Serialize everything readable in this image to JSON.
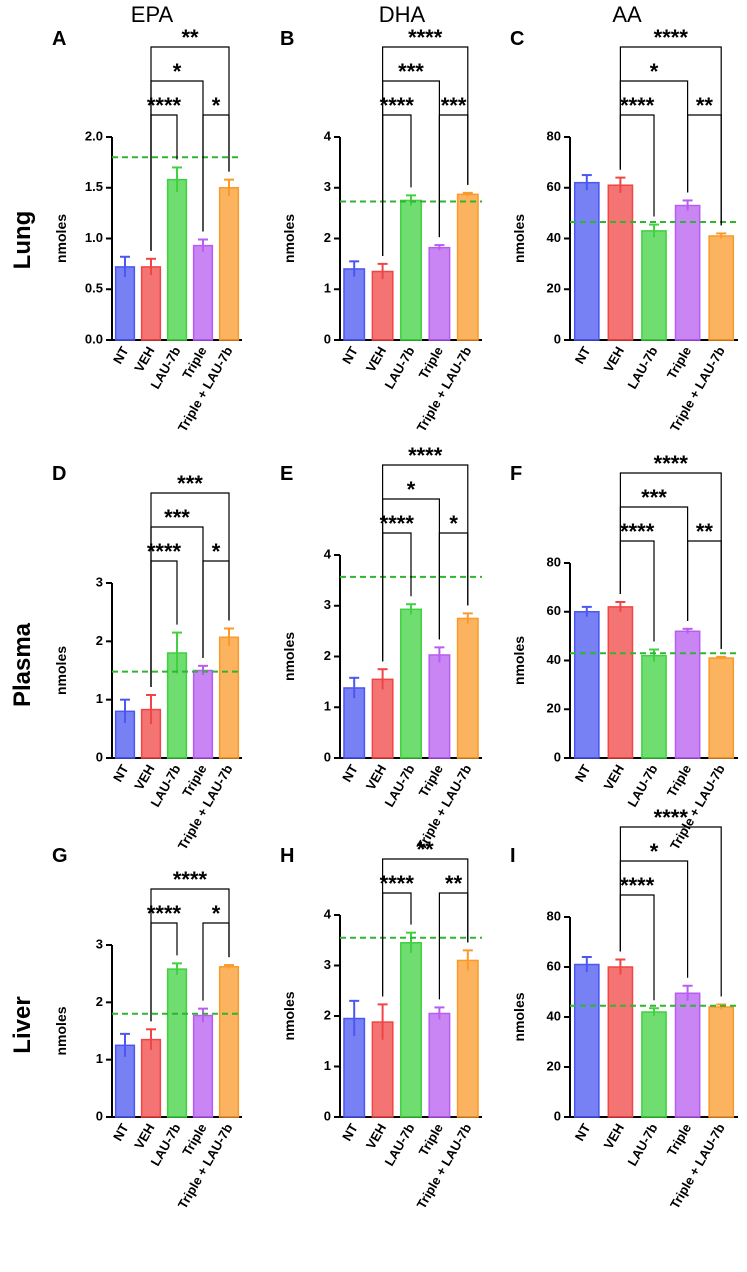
{
  "column_titles": [
    "EPA",
    "DHA",
    "AA"
  ],
  "row_labels": [
    "Lung",
    "Plasma",
    "Liver"
  ],
  "chart_data": [
    {
      "type": "bar",
      "panel": "A",
      "ylabel": "nmoles",
      "categories": [
        "NT",
        "VEH",
        "LAU-7b",
        "Triple",
        "Triple + LAU-7b"
      ],
      "values": [
        0.72,
        0.72,
        1.58,
        0.93,
        1.5
      ],
      "errors": [
        0.1,
        0.08,
        0.12,
        0.06,
        0.08
      ],
      "colors": [
        "#4a57f0",
        "#f04545",
        "#3fd13f",
        "#b85cf2",
        "#fa9a2a"
      ],
      "ylim": [
        0,
        2
      ],
      "yticks": [
        {
          "value": 0,
          "label": "0.0"
        },
        {
          "value": 0.5,
          "label": "0.5"
        },
        {
          "value": 1,
          "label": "1.0"
        },
        {
          "value": 1.5,
          "label": "1.5"
        },
        {
          "value": 2,
          "label": "2.0"
        }
      ],
      "reference_line": {
        "value": 1.8,
        "color": "#2fb52f",
        "style": "dashed"
      },
      "brackets": [
        {
          "between": [
            "VEH",
            "LAU-7b"
          ],
          "label": "****"
        },
        {
          "between": [
            "Triple",
            "Triple + LAU-7b"
          ],
          "label": "*"
        },
        {
          "between": [
            "VEH",
            "Triple"
          ],
          "label": "*"
        },
        {
          "between": [
            "VEH",
            "Triple + LAU-7b"
          ],
          "label": "**"
        }
      ]
    },
    {
      "type": "bar",
      "panel": "B",
      "ylabel": "nmoles",
      "categories": [
        "NT",
        "VEH",
        "LAU-7b",
        "Triple",
        "Triple + LAU-7b"
      ],
      "values": [
        1.4,
        1.35,
        2.75,
        1.82,
        2.87
      ],
      "errors": [
        0.15,
        0.15,
        0.1,
        0.05,
        0.03
      ],
      "colors": [
        "#4a57f0",
        "#f04545",
        "#3fd13f",
        "#b85cf2",
        "#fa9a2a"
      ],
      "ylim": [
        0,
        4
      ],
      "yticks": [
        0,
        1,
        2,
        3,
        4
      ],
      "reference_line": {
        "value": 2.73,
        "color": "#2fb52f",
        "style": "dashed"
      },
      "brackets": [
        {
          "between": [
            "VEH",
            "LAU-7b"
          ],
          "label": "****"
        },
        {
          "between": [
            "Triple",
            "Triple + LAU-7b"
          ],
          "label": "***"
        },
        {
          "between": [
            "VEH",
            "Triple"
          ],
          "label": "***"
        },
        {
          "between": [
            "VEH",
            "Triple + LAU-7b"
          ],
          "label": "****"
        }
      ]
    },
    {
      "type": "bar",
      "panel": "C",
      "ylabel": "nmoles",
      "categories": [
        "NT",
        "VEH",
        "LAU-7b",
        "Triple",
        "Triple + LAU-7b"
      ],
      "values": [
        62,
        61,
        43,
        53,
        41
      ],
      "errors": [
        3,
        3,
        2.5,
        2,
        1
      ],
      "colors": [
        "#4a57f0",
        "#f04545",
        "#3fd13f",
        "#b85cf2",
        "#fa9a2a"
      ],
      "ylim": [
        0,
        80
      ],
      "yticks": [
        0,
        20,
        40,
        60,
        80
      ],
      "reference_line": {
        "value": 46.5,
        "color": "#2fb52f",
        "style": "dashed"
      },
      "brackets": [
        {
          "between": [
            "VEH",
            "LAU-7b"
          ],
          "label": "****"
        },
        {
          "between": [
            "Triple",
            "Triple + LAU-7b"
          ],
          "label": "**"
        },
        {
          "between": [
            "VEH",
            "Triple"
          ],
          "label": "*"
        },
        {
          "between": [
            "VEH",
            "Triple + LAU-7b"
          ],
          "label": "****"
        }
      ]
    },
    {
      "type": "bar",
      "panel": "D",
      "ylabel": "nmoles",
      "categories": [
        "NT",
        "VEH",
        "LAU-7b",
        "Triple",
        "Triple + LAU-7b"
      ],
      "values": [
        0.8,
        0.83,
        1.8,
        1.5,
        2.07
      ],
      "errors": [
        0.2,
        0.25,
        0.35,
        0.08,
        0.15
      ],
      "colors": [
        "#4a57f0",
        "#f04545",
        "#3fd13f",
        "#b85cf2",
        "#fa9a2a"
      ],
      "ylim": [
        0,
        3
      ],
      "yticks": [
        0,
        1,
        2,
        3
      ],
      "reference_line": {
        "value": 1.48,
        "color": "#2fb52f",
        "style": "dashed"
      },
      "brackets": [
        {
          "between": [
            "VEH",
            "LAU-7b"
          ],
          "label": "****"
        },
        {
          "between": [
            "Triple",
            "Triple + LAU-7b"
          ],
          "label": "*"
        },
        {
          "between": [
            "VEH",
            "Triple"
          ],
          "label": "***"
        },
        {
          "between": [
            "VEH",
            "Triple + LAU-7b"
          ],
          "label": "***"
        }
      ]
    },
    {
      "type": "bar",
      "panel": "E",
      "ylabel": "nmoles",
      "categories": [
        "NT",
        "VEH",
        "LAU-7b",
        "Triple",
        "Triple + LAU-7b"
      ],
      "values": [
        1.38,
        1.55,
        2.93,
        2.03,
        2.75
      ],
      "errors": [
        0.2,
        0.2,
        0.1,
        0.15,
        0.1
      ],
      "colors": [
        "#4a57f0",
        "#f04545",
        "#3fd13f",
        "#b85cf2",
        "#fa9a2a"
      ],
      "ylim": [
        0,
        4
      ],
      "yticks": [
        0,
        1,
        2,
        3,
        4
      ],
      "reference_line": {
        "value": 3.57,
        "color": "#2fb52f",
        "style": "dashed"
      },
      "brackets": [
        {
          "between": [
            "VEH",
            "LAU-7b"
          ],
          "label": "****"
        },
        {
          "between": [
            "Triple",
            "Triple + LAU-7b"
          ],
          "label": "*"
        },
        {
          "between": [
            "VEH",
            "Triple"
          ],
          "label": "*"
        },
        {
          "between": [
            "VEH",
            "Triple + LAU-7b"
          ],
          "label": "****"
        }
      ]
    },
    {
      "type": "bar",
      "panel": "F",
      "ylabel": "nmoles",
      "categories": [
        "NT",
        "VEH",
        "LAU-7b",
        "Triple",
        "Triple + LAU-7b"
      ],
      "values": [
        60,
        62,
        42,
        52,
        41
      ],
      "errors": [
        2,
        2,
        2.5,
        1,
        0.5
      ],
      "colors": [
        "#4a57f0",
        "#f04545",
        "#3fd13f",
        "#b85cf2",
        "#fa9a2a"
      ],
      "ylim": [
        0,
        80
      ],
      "yticks": [
        0,
        20,
        40,
        60,
        80
      ],
      "reference_line": {
        "value": 43,
        "color": "#2fb52f",
        "style": "dashed"
      },
      "brackets": [
        {
          "between": [
            "VEH",
            "LAU-7b"
          ],
          "label": "****"
        },
        {
          "between": [
            "Triple",
            "Triple + LAU-7b"
          ],
          "label": "**"
        },
        {
          "between": [
            "VEH",
            "Triple"
          ],
          "label": "***"
        },
        {
          "between": [
            "VEH",
            "Triple + LAU-7b"
          ],
          "label": "****"
        }
      ]
    },
    {
      "type": "bar",
      "panel": "G",
      "ylabel": "nmoles",
      "categories": [
        "NT",
        "VEH",
        "LAU-7b",
        "Triple",
        "Triple + LAU-7b"
      ],
      "values": [
        1.25,
        1.35,
        2.58,
        1.77,
        2.62
      ],
      "errors": [
        0.2,
        0.18,
        0.1,
        0.12,
        0.03
      ],
      "colors": [
        "#4a57f0",
        "#f04545",
        "#3fd13f",
        "#b85cf2",
        "#fa9a2a"
      ],
      "ylim": [
        0,
        3
      ],
      "yticks": [
        0,
        1,
        2,
        3
      ],
      "reference_line": {
        "value": 1.8,
        "color": "#2fb52f",
        "style": "dashed"
      },
      "brackets": [
        {
          "between": [
            "VEH",
            "LAU-7b"
          ],
          "label": "****"
        },
        {
          "between": [
            "Triple",
            "Triple + LAU-7b"
          ],
          "label": "*"
        },
        {
          "between": [
            "VEH",
            "Triple + LAU-7b"
          ],
          "label": "****"
        }
      ]
    },
    {
      "type": "bar",
      "panel": "H",
      "ylabel": "nmoles",
      "categories": [
        "NT",
        "VEH",
        "LAU-7b",
        "Triple",
        "Triple + LAU-7b"
      ],
      "values": [
        1.95,
        1.88,
        3.45,
        2.05,
        3.1
      ],
      "errors": [
        0.35,
        0.35,
        0.2,
        0.12,
        0.2
      ],
      "colors": [
        "#4a57f0",
        "#f04545",
        "#3fd13f",
        "#b85cf2",
        "#fa9a2a"
      ],
      "ylim": [
        0,
        4
      ],
      "yticks": [
        0,
        1,
        2,
        3,
        4
      ],
      "reference_line": {
        "value": 3.55,
        "color": "#2fb52f",
        "style": "dashed"
      },
      "brackets": [
        {
          "between": [
            "VEH",
            "LAU-7b"
          ],
          "label": "****"
        },
        {
          "between": [
            "Triple",
            "Triple + LAU-7b"
          ],
          "label": "**"
        },
        {
          "between": [
            "VEH",
            "Triple + LAU-7b"
          ],
          "label": "**"
        }
      ]
    },
    {
      "type": "bar",
      "panel": "I",
      "ylabel": "nmoles",
      "categories": [
        "NT",
        "VEH",
        "LAU-7b",
        "Triple",
        "Triple + LAU-7b"
      ],
      "values": [
        61,
        60,
        42,
        49.5,
        44
      ],
      "errors": [
        3,
        3,
        1.5,
        3,
        1
      ],
      "colors": [
        "#4a57f0",
        "#f04545",
        "#3fd13f",
        "#b85cf2",
        "#fa9a2a"
      ],
      "ylim": [
        0,
        80
      ],
      "yticks": [
        0,
        20,
        40,
        60,
        80
      ],
      "reference_line": {
        "value": 44.5,
        "color": "#2fb52f",
        "style": "dashed"
      },
      "brackets": [
        {
          "between": [
            "VEH",
            "LAU-7b"
          ],
          "label": "****"
        },
        {
          "between": [
            "VEH",
            "Triple"
          ],
          "label": "*"
        },
        {
          "between": [
            "VEH",
            "Triple + LAU-7b"
          ],
          "label": "****"
        }
      ]
    }
  ]
}
